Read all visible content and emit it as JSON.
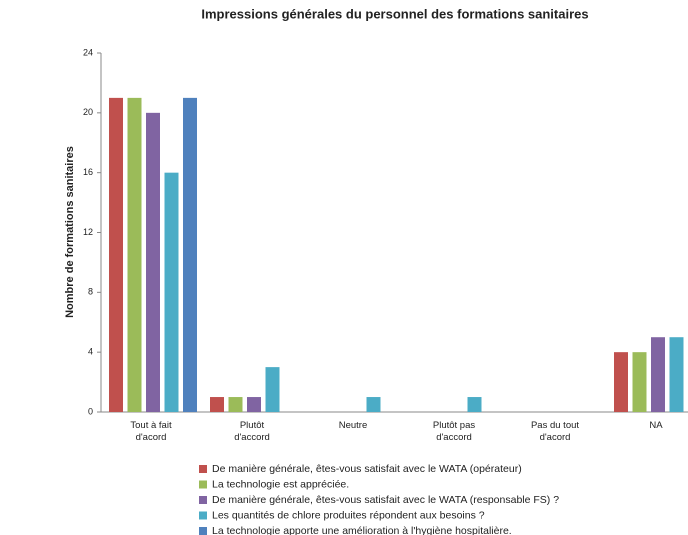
{
  "chart_data": {
    "type": "bar",
    "title": "Impressions générales du personnel des formations sanitaires",
    "y_label": "Nombre de formations sanitaires",
    "categories": [
      "Tout à fait\nd'acord",
      "Plutôt\nd'accord",
      "Neutre",
      "Plutôt pas\nd'accord",
      "Pas du tout\nd'acord",
      "NA"
    ],
    "series": [
      {
        "name": "De manière générale, êtes-vous satisfait avec le WATA (opérateur)",
        "color": "#c0504d",
        "values": [
          21,
          1,
          0,
          0,
          0,
          4
        ]
      },
      {
        "name": "La technologie est appréciée.",
        "color": "#9bbb59",
        "values": [
          21,
          1,
          0,
          0,
          0,
          4
        ]
      },
      {
        "name": "De manière générale, êtes-vous satisfait avec le WATA (responsable FS) ?",
        "color": "#8064a2",
        "values": [
          20,
          1,
          0,
          0,
          0,
          5
        ]
      },
      {
        "name": "Les quantités de chlore produites répondent aux besoins ?",
        "color": "#4bacc6",
        "values": [
          16,
          3,
          1,
          1,
          0,
          5
        ]
      },
      {
        "name": "La technologie apporte une amélioration à l'hygiène hospitalière.",
        "color": "#4f81bd",
        "values": [
          21,
          0,
          0,
          0,
          0,
          null
        ]
      }
    ],
    "ylim": [
      0,
      24
    ],
    "yticks": [
      0,
      4,
      8,
      12,
      16,
      20,
      24
    ],
    "grid": false,
    "legend": "bottom"
  }
}
